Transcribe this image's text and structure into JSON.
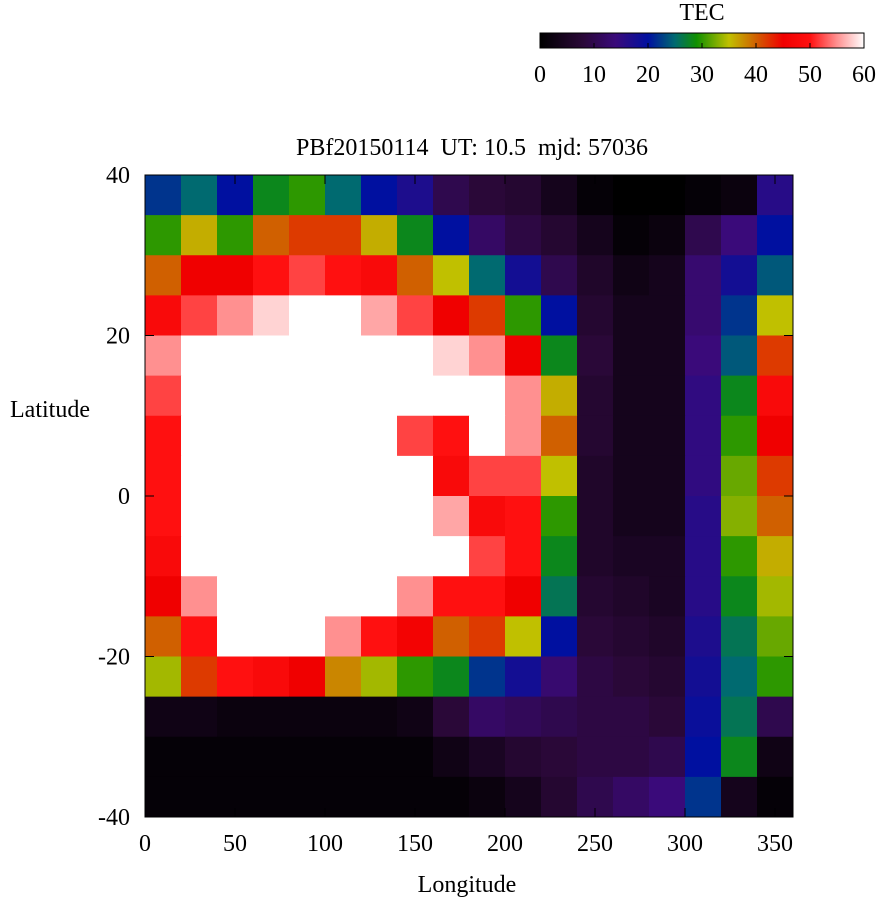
{
  "chart_data": {
    "type": "heatmap",
    "title": "PBf20150114  UT: 10.5  mjd: 57036",
    "x_label": "Longitude",
    "y_label": "Latitude",
    "x": [
      10,
      30,
      50,
      70,
      90,
      110,
      130,
      150,
      170,
      190,
      210,
      230,
      250,
      270,
      290,
      310,
      330,
      350
    ],
    "y": [
      37.5,
      32.5,
      27.5,
      22.5,
      17.5,
      12.5,
      7.5,
      2.5,
      -2.5,
      -7.5,
      -12.5,
      -17.5,
      -22.5,
      -27.5,
      -32.5,
      -37.5
    ],
    "z": [
      [
        22,
        25,
        20,
        28,
        30,
        25,
        20,
        17,
        10,
        8,
        7,
        4,
        1,
        0,
        0,
        1,
        2,
        16
      ],
      [
        30,
        36,
        30,
        40,
        42,
        42,
        36,
        28,
        20,
        12,
        9,
        7,
        4,
        1,
        2,
        10,
        14,
        20
      ],
      [
        40,
        45,
        45,
        50,
        52,
        50,
        48,
        40,
        35,
        25,
        18,
        10,
        6,
        3,
        4,
        13,
        18,
        24
      ],
      [
        48,
        52,
        55,
        58,
        60,
        60,
        56,
        52,
        45,
        42,
        30,
        20,
        7,
        4,
        4,
        13,
        22,
        35
      ],
      [
        55,
        60,
        60,
        60,
        60,
        60,
        60,
        60,
        58,
        55,
        45,
        28,
        8,
        4,
        4,
        14,
        24,
        42
      ],
      [
        52,
        60,
        60,
        60,
        60,
        60,
        60,
        60,
        60,
        60,
        55,
        36,
        7,
        4,
        4,
        15,
        28,
        48
      ],
      [
        50,
        60,
        60,
        60,
        60,
        60,
        60,
        52,
        50,
        60,
        55,
        40,
        7,
        4,
        4,
        15,
        30,
        45
      ],
      [
        50,
        60,
        60,
        60,
        60,
        60,
        60,
        60,
        48,
        52,
        52,
        35,
        6,
        4,
        4,
        15,
        32,
        42
      ],
      [
        50,
        60,
        60,
        60,
        60,
        60,
        60,
        60,
        56,
        48,
        50,
        30,
        6,
        4,
        4,
        16,
        33,
        40
      ],
      [
        48,
        60,
        60,
        60,
        60,
        60,
        60,
        60,
        60,
        52,
        50,
        28,
        6,
        5,
        5,
        16,
        30,
        36
      ],
      [
        45,
        55,
        60,
        60,
        60,
        60,
        60,
        55,
        50,
        50,
        45,
        26,
        7,
        6,
        5,
        16,
        28,
        34
      ],
      [
        40,
        50,
        60,
        60,
        60,
        55,
        50,
        46,
        40,
        42,
        35,
        20,
        8,
        7,
        6,
        17,
        26,
        32
      ],
      [
        34,
        42,
        50,
        48,
        45,
        38,
        34,
        30,
        28,
        22,
        18,
        13,
        9,
        8,
        7,
        18,
        25,
        30
      ],
      [
        3,
        3,
        2,
        2,
        2,
        2,
        2,
        3,
        8,
        12,
        11,
        10,
        9,
        9,
        8,
        19,
        26,
        10
      ],
      [
        1,
        1,
        1,
        1,
        1,
        1,
        1,
        1,
        3,
        5,
        7,
        8,
        9,
        9,
        10,
        20,
        28,
        3
      ],
      [
        1,
        1,
        1,
        1,
        1,
        1,
        1,
        1,
        1,
        2,
        4,
        7,
        10,
        12,
        14,
        22,
        4,
        1
      ]
    ],
    "xlim": [
      0,
      360
    ],
    "ylim": [
      -40,
      40
    ],
    "xticks": [
      0,
      50,
      100,
      150,
      200,
      250,
      300,
      350
    ],
    "yticks": [
      -40,
      -20,
      0,
      20,
      40
    ],
    "colorbar": {
      "label": "TEC",
      "lim": [
        0,
        60
      ],
      "ticks": [
        0,
        10,
        20,
        30,
        40,
        50,
        60
      ],
      "colorscale": [
        [
          0,
          "#000000"
        ],
        [
          8,
          "#2a0838"
        ],
        [
          14,
          "#3a0a7a"
        ],
        [
          20,
          "#0010a0"
        ],
        [
          25,
          "#006a70"
        ],
        [
          29,
          "#109000"
        ],
        [
          35,
          "#c0c000"
        ],
        [
          40,
          "#d06000"
        ],
        [
          45,
          "#f00000"
        ],
        [
          50,
          "#ff1010"
        ],
        [
          55,
          "#ff9090"
        ],
        [
          60,
          "#ffffff"
        ]
      ]
    }
  }
}
